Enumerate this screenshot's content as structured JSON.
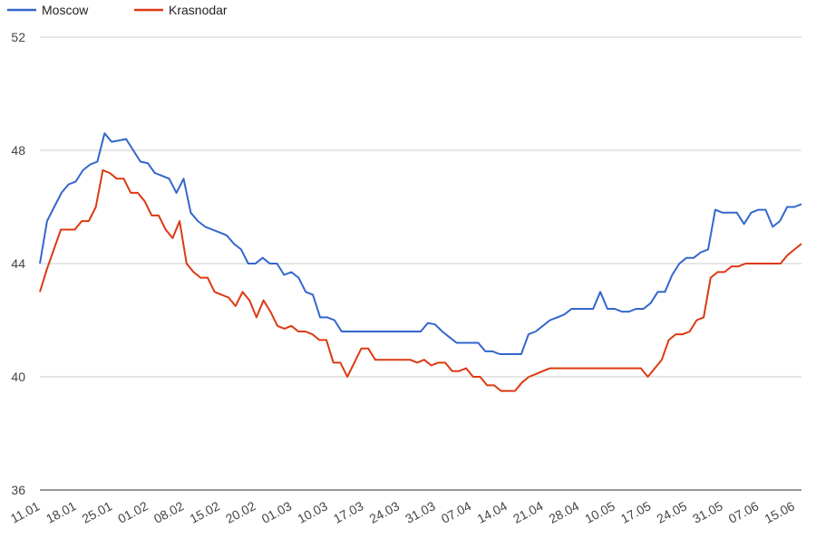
{
  "chart_data": {
    "type": "line",
    "legend_position": "top-left",
    "grid": true,
    "ylim": [
      36,
      52
    ],
    "yticks": [
      "36",
      "40",
      "44",
      "48",
      "52"
    ],
    "ytick_values": [
      36,
      40,
      44,
      48,
      52
    ],
    "xtick_labels": [
      "11.01",
      "18.01",
      "25.01",
      "01.02",
      "08.02",
      "15.02",
      "20.02",
      "01.03",
      "10.03",
      "17.03",
      "24.03",
      "31.03",
      "07.04",
      "14.04",
      "21.04",
      "28.04",
      "10.05",
      "17.05",
      "24.05",
      "31.05",
      "07.06",
      "15.06"
    ],
    "series": [
      {
        "name": "Moscow",
        "color": "#3366cc",
        "values": [
          44.0,
          45.5,
          46.0,
          46.5,
          46.8,
          46.9,
          47.3,
          47.5,
          47.6,
          48.6,
          48.3,
          48.35,
          48.4,
          48.0,
          47.6,
          47.55,
          47.2,
          47.1,
          47.0,
          46.5,
          47.0,
          45.8,
          45.5,
          45.3,
          45.2,
          45.1,
          45.0,
          44.7,
          44.5,
          44.0,
          44.0,
          44.2,
          44.0,
          44.0,
          43.6,
          43.7,
          43.5,
          43.0,
          42.9,
          42.1,
          42.1,
          42.0,
          41.6,
          41.6,
          41.6,
          41.6,
          41.6,
          41.6,
          41.6,
          41.6,
          41.6,
          41.6,
          41.6,
          41.6,
          41.9,
          41.85,
          41.6,
          41.4,
          41.2,
          41.2,
          41.2,
          41.2,
          40.9,
          40.9,
          40.8,
          40.8,
          40.8,
          40.8,
          41.5,
          41.6,
          41.8,
          42.0,
          42.1,
          42.2,
          42.4,
          42.4,
          42.4,
          42.4,
          43.0,
          42.4,
          42.4,
          42.3,
          42.3,
          42.4,
          42.4,
          42.6,
          43.0,
          43.0,
          43.6,
          44.0,
          44.2,
          44.2,
          44.4,
          44.5,
          45.9,
          45.8,
          45.8,
          45.8,
          45.4,
          45.8,
          45.9,
          45.9,
          45.3,
          45.5,
          46.0,
          46.0,
          46.1
        ]
      },
      {
        "name": "Krasnodar",
        "color": "#dc3912",
        "values": [
          43.0,
          43.8,
          44.5,
          45.2,
          45.2,
          45.2,
          45.5,
          45.5,
          46.0,
          47.3,
          47.2,
          47.0,
          47.0,
          46.5,
          46.5,
          46.2,
          45.7,
          45.7,
          45.2,
          44.9,
          45.5,
          44.0,
          43.7,
          43.5,
          43.5,
          43.0,
          42.9,
          42.8,
          42.5,
          43.0,
          42.7,
          42.1,
          42.7,
          42.3,
          41.8,
          41.7,
          41.8,
          41.6,
          41.6,
          41.5,
          41.3,
          41.3,
          40.5,
          40.5,
          40.0,
          40.5,
          41.0,
          41.0,
          40.6,
          40.6,
          40.6,
          40.6,
          40.6,
          40.6,
          40.5,
          40.6,
          40.4,
          40.5,
          40.5,
          40.2,
          40.2,
          40.3,
          40.0,
          40.0,
          39.7,
          39.7,
          39.5,
          39.5,
          39.5,
          39.8,
          40.0,
          40.1,
          40.2,
          40.3,
          40.3,
          40.3,
          40.3,
          40.3,
          40.3,
          40.3,
          40.3,
          40.3,
          40.3,
          40.3,
          40.3,
          40.3,
          40.3,
          40.0,
          40.3,
          40.6,
          41.3,
          41.5,
          41.5,
          41.6,
          42.0,
          42.1,
          43.5,
          43.7,
          43.7,
          43.9,
          43.9,
          44.0,
          44.0,
          44.0,
          44.0,
          44.0,
          44.0,
          44.3,
          44.5,
          44.7
        ]
      }
    ]
  }
}
